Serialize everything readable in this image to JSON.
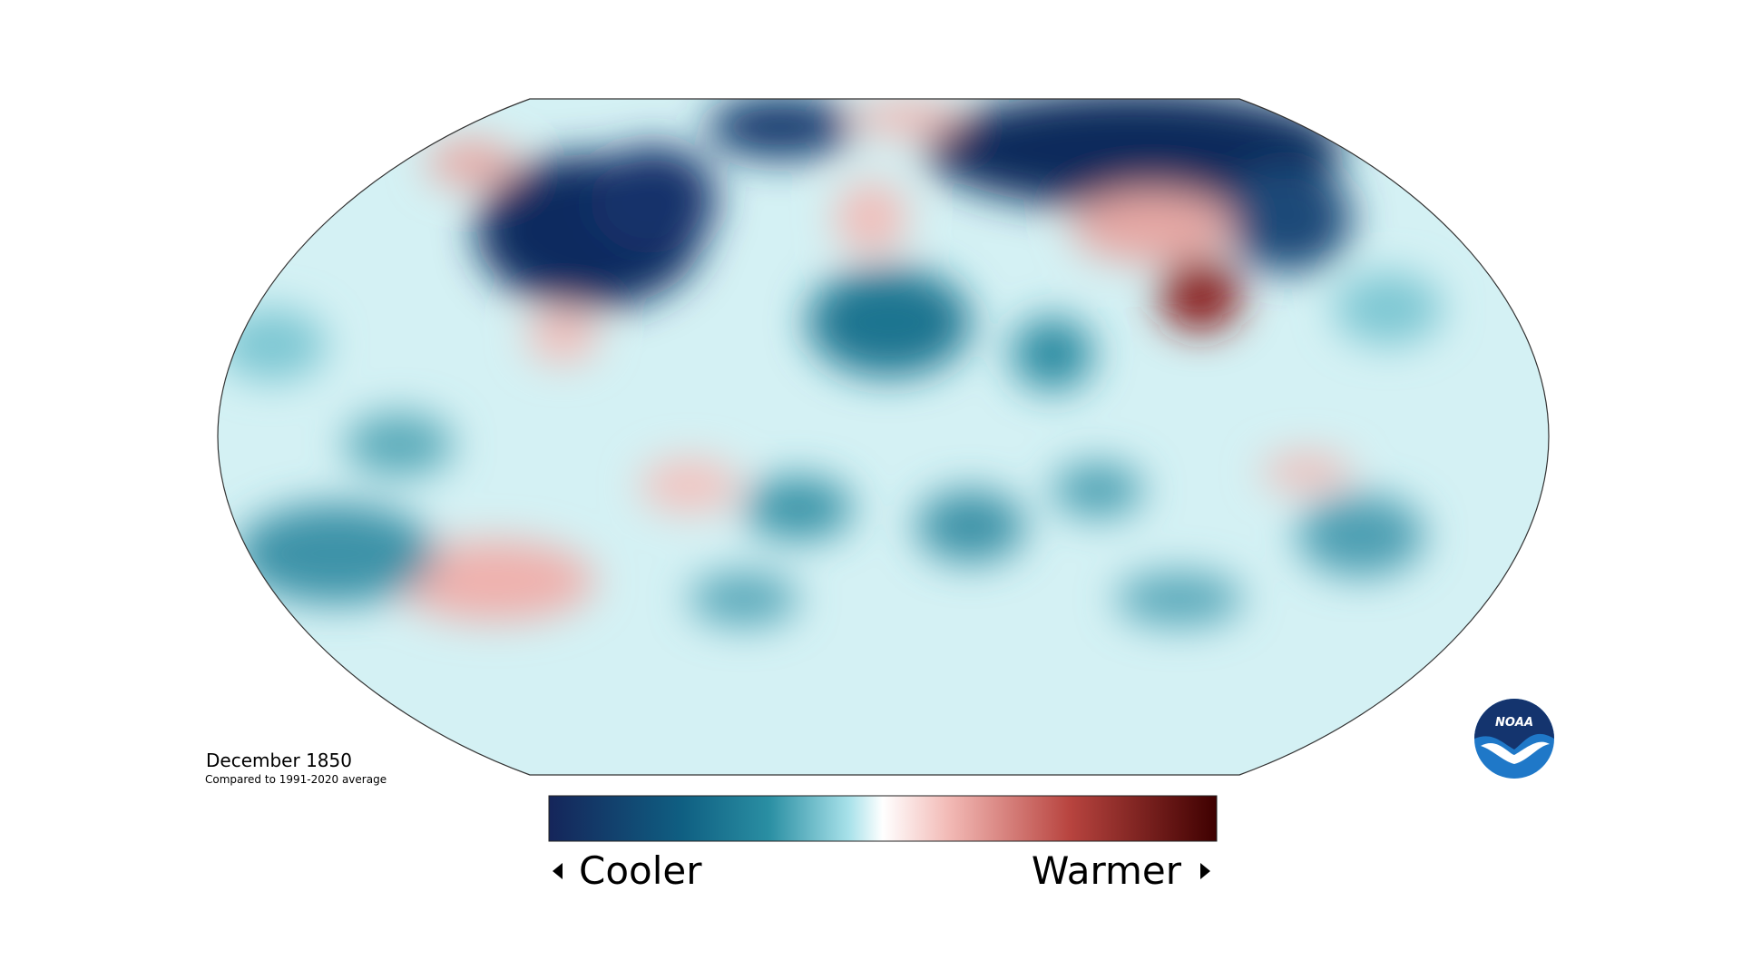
{
  "title": "December 1850",
  "subtitle": "Compared to 1991-2020 average",
  "legend": {
    "low": "Cooler",
    "high": "Warmer"
  },
  "logo": "NOAA"
}
